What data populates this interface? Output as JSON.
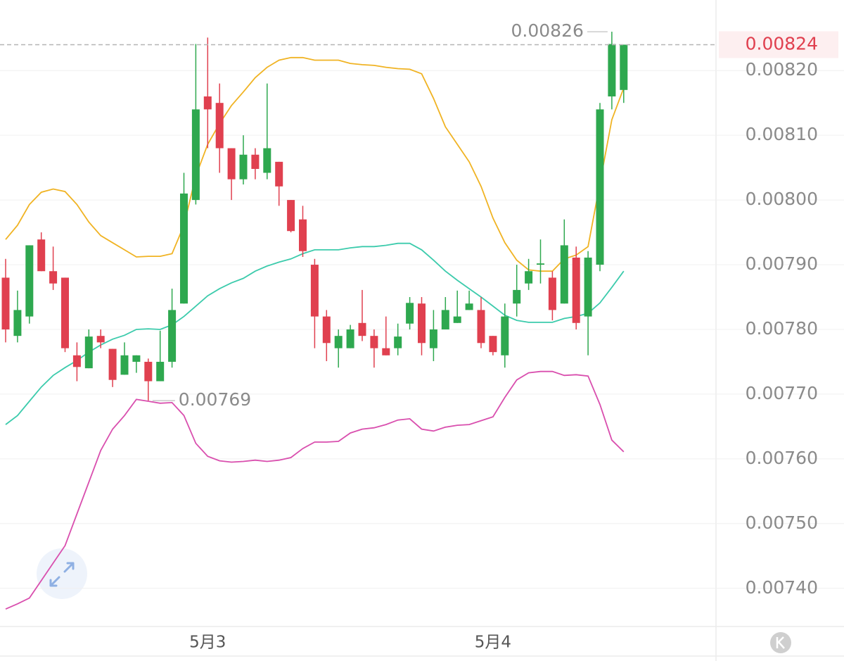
{
  "chart_data": {
    "type": "candlestick",
    "categories": [
      null,
      null,
      null,
      null,
      null,
      null,
      null,
      null,
      null,
      null,
      null,
      null,
      null,
      null,
      null,
      null,
      null,
      "5月3",
      null,
      null,
      null,
      null,
      null,
      null,
      null,
      null,
      null,
      null,
      null,
      null,
      null,
      null,
      null,
      null,
      null,
      null,
      null,
      null,
      null,
      null,
      null,
      "5月4",
      null,
      null,
      null,
      null,
      null,
      null,
      null,
      null,
      null,
      null,
      null
    ],
    "open": [
      0.00788,
      0.00779,
      0.00782,
      0.007939,
      0.00789,
      0.00788,
      0.00776,
      0.00774,
      0.00779,
      0.00777,
      0.00773,
      0.00775,
      0.00775,
      0.00772,
      0.00775,
      0.00784,
      0.008,
      0.00816,
      0.00815,
      0.00808,
      0.008032,
      0.00807,
      0.008042,
      0.008059,
      0.008,
      0.00797,
      0.0079,
      0.00782,
      0.007771,
      0.007771,
      0.00781,
      0.00779,
      0.007771,
      0.007771,
      0.007809,
      0.00784,
      0.007771,
      0.0078,
      0.00781,
      0.00783,
      0.00783,
      0.00779,
      0.00776,
      0.00784,
      0.007871,
      0.0079,
      0.00788,
      0.00784,
      0.007911,
      0.00782,
      0.0079,
      0.00816,
      0.00817
    ],
    "high": [
      0.007909,
      0.00786,
      0.00793,
      0.00795,
      0.007928,
      0.00788,
      0.00778,
      0.0078,
      0.0078,
      0.00777,
      0.00778,
      0.00776,
      0.007755,
      0.007798,
      0.007863,
      0.008042,
      0.008241,
      0.008251,
      0.00818,
      0.00808,
      0.0081,
      0.00808,
      0.00818,
      0.008059,
      0.008,
      0.007991,
      0.007909,
      0.00783,
      0.0078,
      0.007807,
      0.007861,
      0.0078,
      0.00782,
      0.007809,
      0.00785,
      0.00785,
      0.00783,
      0.00785,
      0.00786,
      0.00786,
      0.00785,
      0.00779,
      0.00784,
      0.0079,
      0.007909,
      0.007939,
      0.00789,
      0.00797,
      0.007928,
      0.007921,
      0.00815,
      0.00826,
      0.00824
    ],
    "low": [
      0.00778,
      0.00778,
      0.007809,
      0.00789,
      0.007861,
      0.007765,
      0.00772,
      0.00774,
      0.007771,
      0.007711,
      0.00773,
      0.007733,
      0.00769,
      0.00772,
      0.007741,
      0.00784,
      0.007993,
      0.00808,
      0.008042,
      0.008,
      0.008024,
      0.008032,
      0.008032,
      0.007991,
      0.00795,
      0.007912,
      0.007771,
      0.007751,
      0.007741,
      0.007771,
      0.007782,
      0.007741,
      0.00776,
      0.00776,
      0.0078,
      0.00776,
      0.007751,
      0.0078,
      0.00781,
      0.00783,
      0.007771,
      0.00776,
      0.007741,
      0.00782,
      0.007861,
      0.007871,
      0.007814,
      0.00784,
      0.0078,
      0.00776,
      0.00789,
      0.00814,
      0.00815
    ],
    "close": [
      0.0078,
      0.00783,
      0.00793,
      0.00789,
      0.007871,
      0.007771,
      0.007742,
      0.007789,
      0.00778,
      0.007722,
      0.00776,
      0.00776,
      0.00772,
      0.00775,
      0.00783,
      0.00801,
      0.00814,
      0.00814,
      0.00808,
      0.008032,
      0.00807,
      0.008048,
      0.00808,
      0.008021,
      0.007952,
      0.007921,
      0.00782,
      0.007779,
      0.00779,
      0.0078,
      0.00779,
      0.007771,
      0.00776,
      0.007789,
      0.007841,
      0.007779,
      0.0078,
      0.00783,
      0.00782,
      0.00784,
      0.007779,
      0.007765,
      0.00782,
      0.007861,
      0.00789,
      0.007902,
      0.00783,
      0.00793,
      0.00781,
      0.007911,
      0.00814,
      0.008241,
      0.00824
    ],
    "up_color": "#2ea84f",
    "down_color": "#e0404f",
    "lines": [
      {
        "color": "#f0b323",
        "values": [
          0.007939,
          0.007961,
          0.007993,
          0.008012,
          0.008017,
          0.008013,
          0.007993,
          0.007966,
          0.007945,
          0.007934,
          0.007923,
          0.007912,
          0.007913,
          0.007913,
          0.007917,
          0.007961,
          0.008037,
          0.008086,
          0.008118,
          0.008146,
          0.008167,
          0.008189,
          0.008205,
          0.008216,
          0.00822,
          0.00822,
          0.008216,
          0.008216,
          0.008216,
          0.008211,
          0.008209,
          0.008208,
          0.008205,
          0.008203,
          0.008202,
          0.008195,
          0.008157,
          0.008113,
          0.008086,
          0.008059,
          0.008021,
          0.007972,
          0.007934,
          0.007907,
          0.007892,
          0.00789,
          0.00789,
          0.007909,
          0.007915,
          0.007928,
          0.008026,
          0.008124,
          0.008173
        ]
      },
      {
        "color": "#3ccbac",
        "values": [
          0.007653,
          0.007667,
          0.007689,
          0.007711,
          0.007729,
          0.007741,
          0.007752,
          0.007765,
          0.007776,
          0.007785,
          0.007791,
          0.0078,
          0.007801,
          0.0078,
          0.007807,
          0.00782,
          0.007836,
          0.007852,
          0.007863,
          0.007872,
          0.007879,
          0.00789,
          0.007898,
          0.007904,
          0.007909,
          0.007917,
          0.007923,
          0.007923,
          0.007923,
          0.007926,
          0.007928,
          0.007928,
          0.00793,
          0.007933,
          0.007933,
          0.007923,
          0.007907,
          0.00789,
          0.007876,
          0.007863,
          0.00785,
          0.007836,
          0.007822,
          0.007814,
          0.007811,
          0.007811,
          0.007811,
          0.007817,
          0.00782,
          0.007825,
          0.007841,
          0.007865,
          0.00789
        ]
      },
      {
        "color": "#d94fae",
        "values": [
          0.007368,
          0.007376,
          0.007385,
          0.007412,
          0.007439,
          0.007466,
          0.007515,
          0.007564,
          0.007613,
          0.007646,
          0.007667,
          0.007692,
          0.007689,
          0.007686,
          0.007687,
          0.007667,
          0.007624,
          0.007604,
          0.007597,
          0.007595,
          0.007596,
          0.007598,
          0.007596,
          0.007598,
          0.007602,
          0.007616,
          0.007626,
          0.007626,
          0.007627,
          0.00764,
          0.007646,
          0.007648,
          0.007653,
          0.00766,
          0.007662,
          0.007646,
          0.007643,
          0.007649,
          0.007652,
          0.007653,
          0.007659,
          0.007665,
          0.007695,
          0.007722,
          0.007733,
          0.007735,
          0.007735,
          0.007729,
          0.00773,
          0.007728,
          0.007684,
          0.007629,
          0.007611
        ]
      }
    ],
    "ylim": [
      0.007341,
      0.008309
    ],
    "yticks": [
      {
        "value": 0.0074,
        "label": "0.00740"
      },
      {
        "value": 0.0075,
        "label": "0.00750"
      },
      {
        "value": 0.0076,
        "label": "0.00760"
      },
      {
        "value": 0.0077,
        "label": "0.00770"
      },
      {
        "value": 0.0078,
        "label": "0.00780"
      },
      {
        "value": 0.0079,
        "label": "0.00790"
      },
      {
        "value": 0.008,
        "label": "0.00800"
      },
      {
        "value": 0.0081,
        "label": "0.00810"
      },
      {
        "value": 0.0082,
        "label": "0.00820"
      }
    ],
    "grid": true,
    "last_price": 0.00824,
    "last_price_color": "#e0404f",
    "max_high": 0.00826,
    "min_low": 0.00769
  }
}
